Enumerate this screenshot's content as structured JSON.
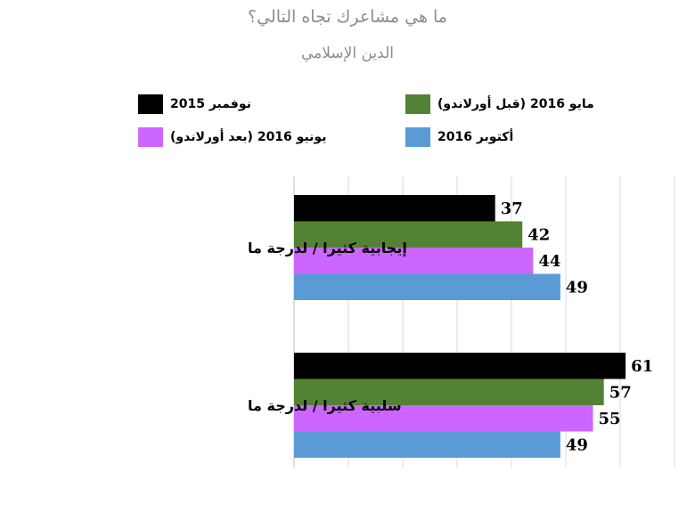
{
  "chart_data": {
    "type": "bar",
    "orientation": "horizontal",
    "title": "ما هي مشاعرك تجاه التالي؟",
    "subtitle": "الدين الإسلامي",
    "categories": [
      "إيجابية كثيرا / لدرجة ما",
      "سلبية كثيرا / لدرجة ما"
    ],
    "series": [
      {
        "name": "نوفمبر 2015",
        "color": "#000000",
        "values": [
          37,
          61
        ]
      },
      {
        "name": "مايو 2016 (قبل أورلاندو)",
        "color": "#548235",
        "values": [
          42,
          57
        ]
      },
      {
        "name": "يونيو 2016 (بعد أورلاندو)",
        "color": "#cc66ff",
        "values": [
          44,
          55
        ]
      },
      {
        "name": "أكتوبر 2016",
        "color": "#5b9bd5",
        "values": [
          49,
          49
        ]
      }
    ],
    "xlim": [
      0,
      70
    ],
    "grid": true,
    "legend_position": "top"
  }
}
